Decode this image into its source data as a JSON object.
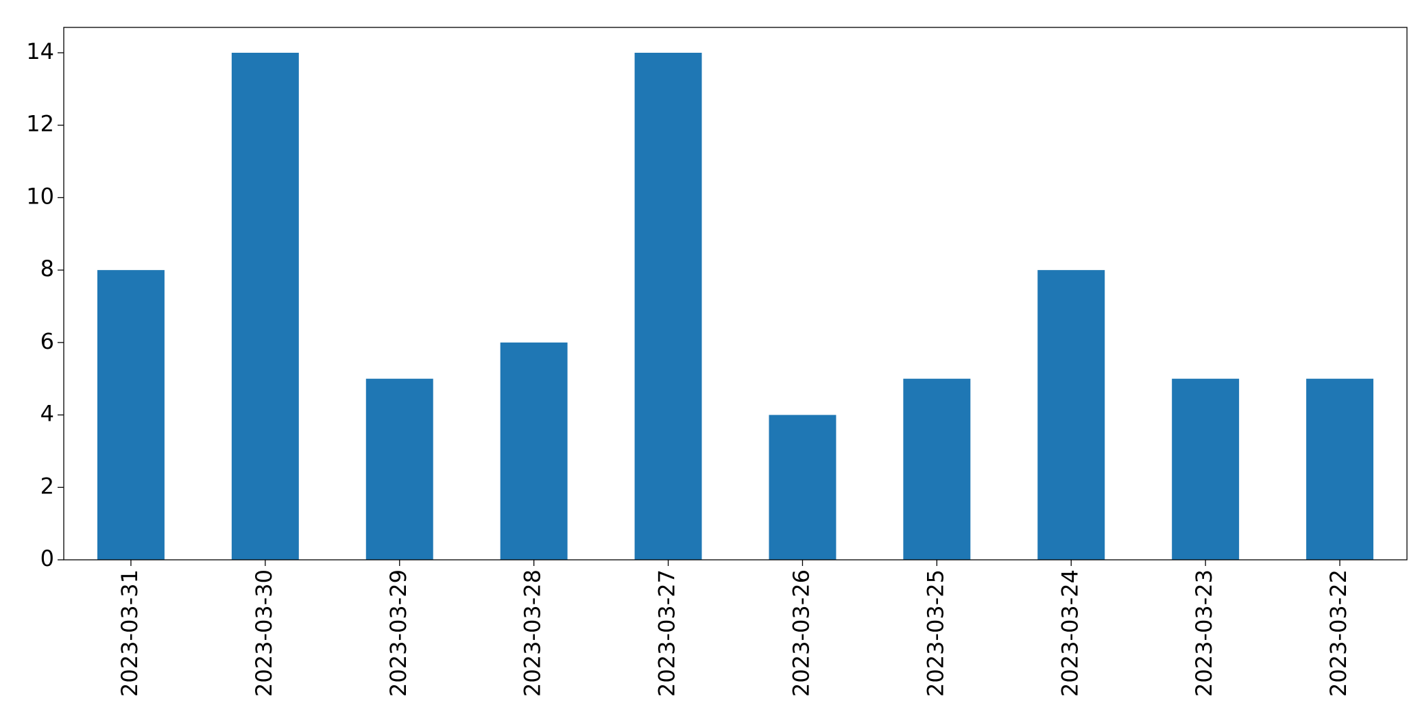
{
  "chart_data": {
    "type": "bar",
    "categories": [
      "2023-03-31",
      "2023-03-30",
      "2023-03-29",
      "2023-03-28",
      "2023-03-27",
      "2023-03-26",
      "2023-03-25",
      "2023-03-24",
      "2023-03-23",
      "2023-03-22"
    ],
    "values": [
      8,
      14,
      5,
      6,
      14,
      4,
      5,
      8,
      5,
      5
    ],
    "color": "#1f77b4",
    "ylim": [
      0,
      14.7
    ],
    "yticks": [
      0,
      2,
      4,
      6,
      8,
      10,
      12,
      14
    ],
    "grid": false
  }
}
